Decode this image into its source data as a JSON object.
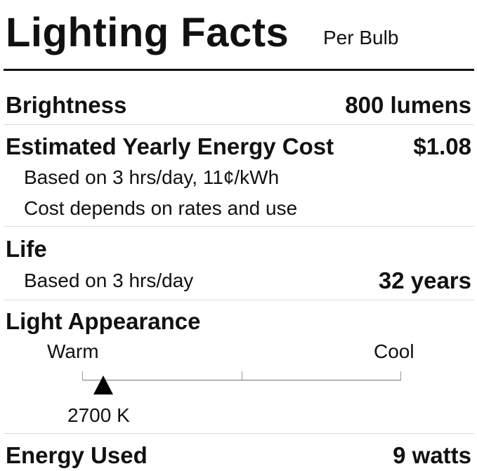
{
  "header": {
    "title": "Lighting Facts",
    "subtitle": "Per Bulb"
  },
  "brightness": {
    "label": "Brightness",
    "value": "800 lumens"
  },
  "energy_cost": {
    "label": "Estimated Yearly Energy Cost",
    "value": "$1.08",
    "note1": "Based on 3 hrs/day, 11¢/kWh",
    "note2": "Cost depends on rates and use"
  },
  "life": {
    "label": "Life",
    "note": "Based on 3 hrs/day",
    "value": "32 years"
  },
  "appearance": {
    "label": "Light Appearance",
    "warm_label": "Warm",
    "cool_label": "Cool",
    "value": "2700 K",
    "marker_position_fraction": 0.066
  },
  "energy_used": {
    "label": "Energy Used",
    "value": "9 watts"
  }
}
